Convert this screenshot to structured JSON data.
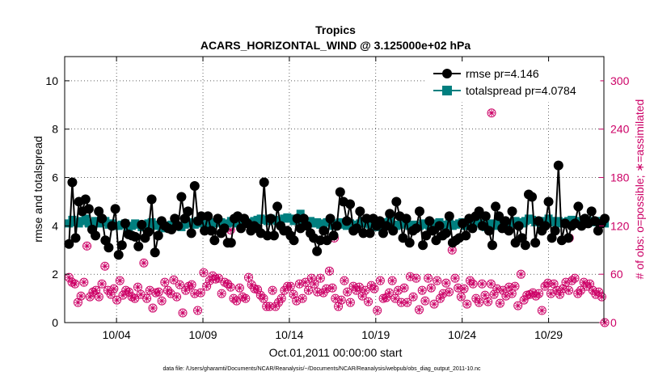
{
  "chart_data": {
    "type": "line",
    "title": "Tropics",
    "subtitle": "ACARS_HORIZONTAL_WIND @ 3.125000e+02 hPa",
    "xlabel": "Oct.01,2011 00:00:00 start",
    "ylabel": "rmse and totalspread",
    "y2label": "# of obs: o=possible; ∗=assimilated",
    "footer": "data file: /Users/gharamti/Documents/NCAR/Reanalysis/~/Documents/NCAR/Reanalysis/webpub/obs_diag_output_2011-10.nc",
    "x_ticks": [
      {
        "label": "10/04",
        "day": 4
      },
      {
        "label": "10/09",
        "day": 9
      },
      {
        "label": "10/14",
        "day": 14
      },
      {
        "label": "10/19",
        "day": 19
      },
      {
        "label": "10/24",
        "day": 24
      },
      {
        "label": "10/29",
        "day": 29
      }
    ],
    "x_range": [
      1,
      32.2
    ],
    "ylim": [
      0,
      11
    ],
    "y_ticks": [
      0,
      2,
      4,
      6,
      8,
      10
    ],
    "y2lim": [
      0,
      330
    ],
    "y2_ticks": [
      0,
      60,
      120,
      180,
      240,
      300
    ],
    "legend_position": "top-right",
    "series": [
      {
        "name": "rmse",
        "legend": "rmse pr=4.146",
        "color": "#000000",
        "axis": "left",
        "values": [
          3.25,
          5.8,
          3.5,
          5.0,
          4.6,
          5.1,
          4.7,
          3.85,
          3.6,
          4.6,
          4.3,
          3.4,
          3.1,
          4.0,
          4.7,
          2.8,
          3.2,
          4.1,
          3.65,
          3.6,
          3.55,
          3.15,
          4.05,
          3.5,
          3.75,
          5.1,
          2.9,
          3.6,
          4.2,
          4.0,
          3.9,
          3.85,
          4.3,
          4.0,
          5.2,
          4.3,
          4.6,
          3.7,
          5.65,
          4.2,
          4.4,
          3.8,
          4.4,
          3.8,
          3.4,
          4.3,
          3.7,
          3.9,
          3.3,
          3.3,
          4.3,
          4.4,
          3.9,
          4.3,
          4.1,
          3.8,
          4.0,
          3.9,
          3.7,
          5.8,
          3.6,
          4.3,
          3.6,
          4.8,
          4.0,
          3.8,
          3.8,
          3.6,
          3.4,
          4.3,
          3.9,
          4.3,
          4.0,
          3.7,
          3.5,
          2.95,
          3.4,
          3.8,
          3.4,
          4.3,
          3.6,
          4.0,
          5.4,
          5.0,
          4.2,
          4.9,
          3.8,
          3.9,
          4.6,
          3.7,
          4.3,
          3.7,
          4.3,
          4.0,
          4.2,
          3.7,
          4.0,
          4.5,
          3.8,
          5.0,
          4.4,
          3.5,
          4.3,
          3.3,
          3.8,
          3.9,
          4.6,
          3.2,
          3.6,
          4.2,
          3.8,
          3.4,
          4.0,
          3.6,
          3.7,
          4.4,
          3.3,
          3.4,
          3.5,
          4.1,
          3.6,
          4.3,
          3.9,
          4.4,
          4.6,
          4.0,
          4.4,
          3.8,
          3.2,
          4.8,
          4.4,
          3.9,
          4.2,
          3.8,
          4.6,
          3.3,
          4.0,
          3.5,
          3.2,
          5.3,
          5.2,
          3.3,
          4.2,
          3.8,
          4.0,
          5.0,
          3.5,
          3.8,
          6.5,
          3.4,
          4.1,
          3.5,
          4.0,
          4.1,
          4.8,
          4.0,
          4.3,
          4.1,
          4.6,
          4.2,
          3.8,
          4.1,
          4.3
        ]
      },
      {
        "name": "totalspread",
        "legend": "totalspread pr=4.0784",
        "color": "#007f7f",
        "axis": "left",
        "values": [
          4.1,
          4.25,
          4.15,
          4.1,
          4.2,
          4.3,
          4.1,
          4.05,
          4.2,
          4.1,
          4.15,
          4.2,
          4.05,
          4.1,
          4.0,
          4.0,
          4.05,
          4.1,
          3.95,
          4.0,
          4.1,
          4.05,
          3.95,
          4.0,
          4.1,
          4.15,
          4.0,
          4.05,
          3.95,
          3.9,
          4.0,
          4.05,
          4.1,
          4.0,
          3.95,
          4.05,
          4.1,
          4.15,
          4.05,
          4.2,
          4.1,
          4.05,
          4.0,
          4.15,
          4.1,
          4.2,
          4.15,
          4.05,
          4.1,
          4.2,
          4.15,
          4.1,
          4.0,
          4.1,
          4.15,
          4.1,
          4.2,
          4.25,
          4.3,
          4.25,
          4.2,
          4.3,
          4.25,
          4.2,
          4.15,
          4.3,
          4.35,
          4.3,
          4.2,
          4.25,
          4.5,
          4.2,
          4.15,
          4.2,
          4.1,
          4.15,
          4.05,
          4.1,
          4.15,
          4.2,
          4.0,
          4.1,
          4.15,
          4.05,
          4.0,
          4.1,
          4.05,
          4.0,
          4.1,
          4.2,
          4.1,
          4.05,
          4.0,
          3.95,
          4.0,
          4.1,
          4.15,
          4.2,
          4.05,
          4.0,
          4.05,
          4.1,
          4.1,
          4.0,
          4.05,
          3.95,
          4.0,
          4.1,
          4.05,
          4.0,
          4.05,
          4.1,
          4.15,
          4.0,
          4.05,
          4.1,
          4.0,
          4.05,
          4.1,
          4.15,
          4.0,
          4.05,
          4.1,
          4.2,
          4.1,
          4.0,
          3.95,
          4.05,
          4.1,
          4.0,
          4.1,
          4.2,
          4.15,
          4.05,
          4.1,
          4.2,
          4.15,
          4.1,
          4.2,
          4.3,
          4.25,
          4.15,
          4.2,
          4.1,
          4.2,
          4.3,
          4.2,
          4.15,
          4.2,
          4.1,
          4.15,
          4.2,
          4.25,
          4.15,
          4.2,
          4.1,
          4.15,
          4.2,
          4.2,
          4.15,
          4.2,
          4.2,
          4.1
        ]
      },
      {
        "name": "obs_possible",
        "legend": "",
        "color": "#cc0066",
        "axis": "right",
        "values": [
          56,
          50,
          48,
          25,
          33,
          50,
          95,
          32,
          38,
          40,
          32,
          48,
          70,
          40,
          35,
          42,
          28,
          52,
          34,
          40,
          38,
          32,
          30,
          44,
          35,
          74,
          30,
          40,
          18,
          37,
          38,
          27,
          50,
          40,
          36,
          53,
          32,
          47,
          12,
          40,
          45,
          47,
          36,
          15,
          37,
          62,
          45,
          52,
          58,
          54,
          55,
          36,
          50,
          48,
          44,
          30,
          27,
          43,
          32,
          30,
          56,
          47,
          42,
          41,
          34,
          30,
          20,
          20,
          40,
          20,
          25,
          30,
          40,
          45,
          45,
          35,
          27,
          48,
          30,
          50,
          40,
          55,
          48,
          38,
          55,
          37,
          42,
          64,
          43,
          30,
          20,
          28,
          52,
          38,
          25,
          45,
          40,
          44,
          33,
          40,
          26,
          46,
          42,
          15,
          52,
          30,
          31,
          37,
          52,
          30,
          40,
          25,
          43,
          25,
          57,
          32,
          55,
          16,
          40,
          27,
          55,
          43,
          23,
          52,
          30,
          36,
          49,
          38,
          90,
          55,
          43,
          32,
          42,
          23,
          52,
          48,
          30,
          25,
          48,
          34,
          26,
          48,
          35,
          42,
          24,
          40,
          33,
          44,
          36,
          45,
          21,
          60,
          28,
          34,
          35,
          37,
          33,
          36,
          15,
          45,
          49,
          36,
          48,
          40,
          35,
          42,
          50,
          40,
          52,
          55,
          36,
          40,
          50,
          45,
          48,
          40,
          35,
          38,
          32,
          0
        ]
      },
      {
        "name": "obs_assimilated",
        "legend": "",
        "color": "#cc0066",
        "axis": "right",
        "values": [
          56,
          50,
          48,
          25,
          33,
          50,
          95,
          32,
          38,
          40,
          32,
          48,
          70,
          40,
          35,
          42,
          28,
          52,
          34,
          40,
          38,
          32,
          30,
          44,
          35,
          74,
          30,
          40,
          18,
          37,
          38,
          27,
          50,
          40,
          36,
          53,
          32,
          47,
          12,
          40,
          45,
          47,
          36,
          15,
          37,
          62,
          45,
          52,
          58,
          54,
          55,
          36,
          50,
          48,
          44,
          30,
          27,
          43,
          32,
          30,
          56,
          47,
          42,
          41,
          34,
          30,
          20,
          20,
          40,
          20,
          25,
          30,
          40,
          45,
          45,
          35,
          27,
          48,
          30,
          50,
          40,
          55,
          48,
          38,
          55,
          37,
          42,
          64,
          43,
          30,
          20,
          28,
          52,
          38,
          25,
          45,
          40,
          44,
          33,
          40,
          26,
          46,
          42,
          15,
          52,
          30,
          31,
          37,
          52,
          30,
          40,
          25,
          43,
          25,
          57,
          32,
          55,
          16,
          40,
          27,
          55,
          43,
          23,
          52,
          30,
          36,
          49,
          38,
          90,
          55,
          43,
          32,
          42,
          23,
          52,
          48,
          30,
          25,
          48,
          34,
          26,
          48,
          35,
          42,
          24,
          40,
          33,
          44,
          36,
          45,
          21,
          60,
          28,
          34,
          35,
          37,
          33,
          36,
          15,
          45,
          49,
          36,
          48,
          40,
          35,
          42,
          50,
          40,
          52,
          55,
          36,
          40,
          50,
          45,
          48,
          40,
          35,
          38,
          32,
          0
        ]
      }
    ],
    "outlier_obs": [
      {
        "day": 25.7,
        "value": 260
      },
      {
        "day": 10.6,
        "value": 115
      },
      {
        "day": 16.6,
        "value": 105
      },
      {
        "day": 30.2,
        "value": 105
      }
    ]
  }
}
